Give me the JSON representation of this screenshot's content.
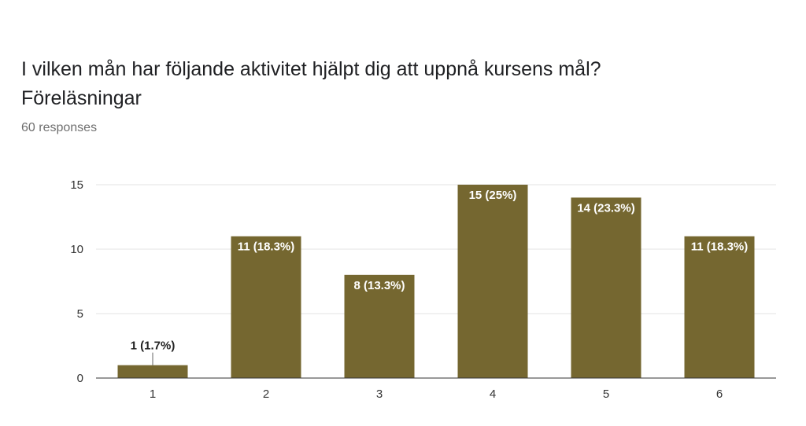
{
  "header": {
    "question": "I vilken mån har följande aktivitet hjälpt dig att uppnå kursens mål?",
    "subquestion": "Föreläsningar",
    "responses": "60 responses"
  },
  "colors": {
    "bar": "#756730",
    "grid": "#e3e3e3",
    "axis": "#333333",
    "label_inside": "#ffffff",
    "label_outside": "#222222"
  },
  "chart_data": {
    "type": "bar",
    "title": "",
    "xlabel": "",
    "ylabel": "",
    "categories": [
      "1",
      "2",
      "3",
      "4",
      "5",
      "6"
    ],
    "values": [
      1,
      11,
      8,
      15,
      14,
      11
    ],
    "data_labels": [
      "1 (1.7%)",
      "11 (18.3%)",
      "8 (13.3%)",
      "15 (25%)",
      "14 (23.3%)",
      "11 (18.3%)"
    ],
    "ylim": [
      0,
      15
    ],
    "yticks": [
      0,
      5,
      10,
      15
    ],
    "grid": true,
    "legend": "none"
  }
}
